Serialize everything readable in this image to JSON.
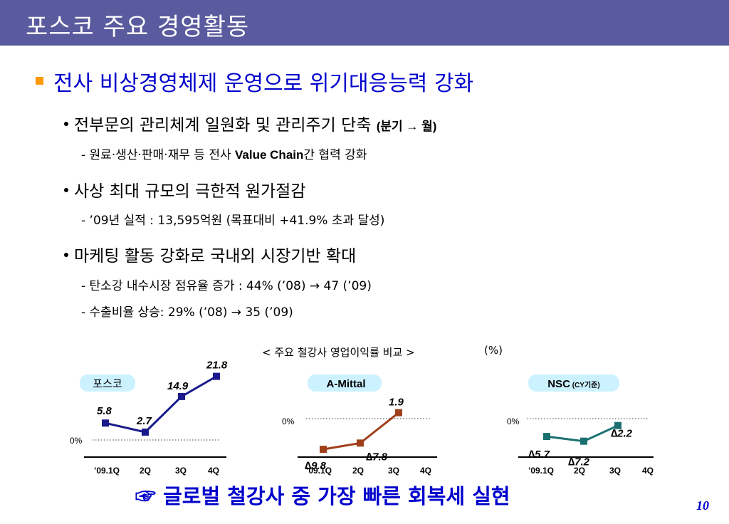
{
  "title": "포스코 주요 경영활동",
  "heading": "전사 비상경영체제 운영으로 위기대응능력 강화",
  "bullets": [
    {
      "text": "전부문의 관리체계 일원화 및 관리주기 단축",
      "suffix": "(분기 → 월)",
      "subs": [
        {
          "pre": "- 원료·생산·판매·재무 등 전사 ",
          "bold": "Value Chain",
          "post": "간 협력 강화"
        }
      ]
    },
    {
      "text": "사상 최대 규모의 극한적 원가절감",
      "subs": [
        {
          "pre": "- ’09년 실적 : 13,595억원 (목표대비 +41.9% 초과 달성)"
        }
      ]
    },
    {
      "text": "마케팅 활동 강화로 국내외 시장기반 확대",
      "subs": [
        {
          "pre": "- 탄소강 내수시장 점유율 증가 : 44% (’08) → 47 (’09)"
        },
        {
          "pre": "- 수출비율 상승: 29% (’08) → 35 (’09)"
        }
      ]
    }
  ],
  "chart_section": {
    "title": "< 주요 철강사 영업이익률 비교 >",
    "unit": "(%)"
  },
  "chart_data": [
    {
      "type": "line",
      "name": "포스코",
      "categories": [
        "’09.1Q",
        "2Q",
        "3Q",
        "4Q"
      ],
      "values": [
        5.8,
        2.7,
        14.9,
        21.8
      ],
      "labels": [
        "5.8",
        "2.7",
        "14.9",
        "21.8"
      ],
      "zero_label": "0%",
      "color": "#1a1a8c"
    },
    {
      "type": "line",
      "name": "A-Mittal",
      "categories": [
        "’09.1Q",
        "2Q",
        "3Q",
        "4Q"
      ],
      "values": [
        -9.8,
        -7.8,
        1.9
      ],
      "labels": [
        "∆9.8",
        "∆7.8",
        "1.9"
      ],
      "zero_label": "0%",
      "color": "#a0401a"
    },
    {
      "type": "line",
      "name": "NSC",
      "name_note": "(CY기준)",
      "categories": [
        "’09.1Q",
        "2Q",
        "3Q",
        "4Q"
      ],
      "values": [
        -5.7,
        -7.2,
        -2.2
      ],
      "labels": [
        "∆5.7",
        "∆7.2",
        "∆2.2"
      ],
      "zero_label": "0%",
      "color": "#1a7070"
    }
  ],
  "callout": "☞ 글로벌 철강사 중 가장 빠른 회복세 실현",
  "page_number": "10"
}
